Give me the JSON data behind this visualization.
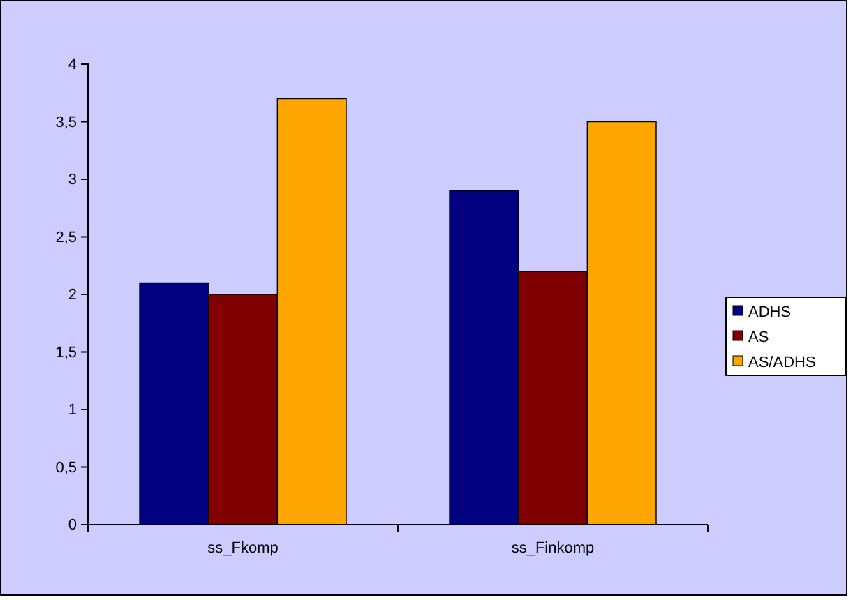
{
  "chart_data": {
    "type": "bar",
    "categories": [
      "ss_Fkomp",
      "ss_Finkomp"
    ],
    "series": [
      {
        "name": "ADHS",
        "color": "#000080",
        "values": [
          2.1,
          2.9
        ]
      },
      {
        "name": "AS",
        "color": "#800000",
        "values": [
          2.0,
          2.2
        ]
      },
      {
        "name": "AS/ADHS",
        "color": "#ffa500",
        "values": [
          3.7,
          3.5
        ]
      }
    ],
    "ylim": [
      0,
      4
    ],
    "yticks": [
      0,
      {
        "value": 0.5,
        "label": "0,5"
      },
      1,
      {
        "value": 1.5,
        "label": "1,5"
      },
      2,
      {
        "value": 2.5,
        "label": "2,5"
      },
      3,
      {
        "value": 3.5,
        "label": "3,5"
      },
      4
    ],
    "grid": false,
    "legend": "right"
  }
}
